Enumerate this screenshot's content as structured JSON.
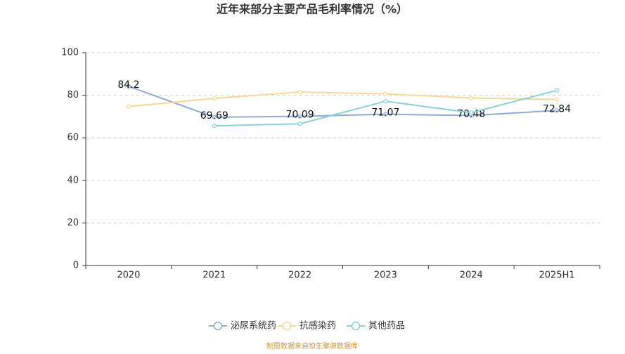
{
  "chart_data": {
    "type": "line",
    "title": "近年来部分主要产品毛利率情况（%）",
    "categories": [
      "2020",
      "2021",
      "2022",
      "2023",
      "2024",
      "2025H1"
    ],
    "series": [
      {
        "name": "泌尿系统药",
        "color": "#8eaad6",
        "values": [
          84.2,
          69.69,
          70.09,
          71.07,
          70.48,
          72.84
        ],
        "show_labels": true
      },
      {
        "name": "抗感染药",
        "color": "#f8d795",
        "values": [
          74.7,
          78.5,
          81.5,
          80.6,
          78.7,
          78.0
        ],
        "show_labels": false
      },
      {
        "name": "其他药品",
        "color": "#86d2d4",
        "values": [
          null,
          65.6,
          66.6,
          77.2,
          71.8,
          82.3
        ],
        "show_labels": false
      }
    ],
    "ylim": [
      0,
      100
    ],
    "yticks": [
      0,
      20,
      40,
      60,
      80,
      100
    ],
    "grid": true,
    "legend": "bottom",
    "source": "制图数据来自恒生聚源数据库"
  }
}
